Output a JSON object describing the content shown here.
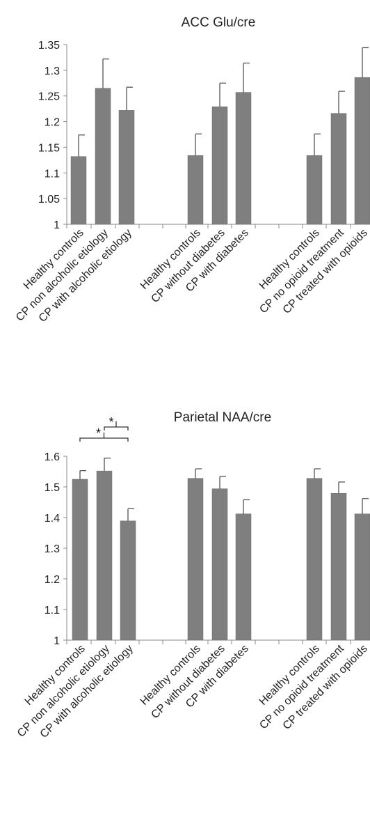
{
  "chart_data": [
    {
      "type": "bar",
      "title": "ACC Glu/cre",
      "ylim": [
        1,
        1.35
      ],
      "yticks": [
        "1",
        "1.05",
        "1.1",
        "1.15",
        "1.2",
        "1.25",
        "1.3",
        "1.35"
      ],
      "grid": false,
      "error_bars": true,
      "bar_color": "#7f7f7f",
      "categories": [
        "Healthy controls",
        "CP non alcoholic etiology",
        "CP with alcoholic etiology",
        "Healthy controls",
        "CP without diabetes",
        "CP with diabetes",
        "Healthy controls",
        "CP no opioid treatment",
        "CP treated with opioids"
      ],
      "values": [
        1.132,
        1.265,
        1.222,
        1.134,
        1.229,
        1.257,
        1.134,
        1.216,
        1.286
      ],
      "errors": [
        0.042,
        0.057,
        0.045,
        0.042,
        0.046,
        0.057,
        0.042,
        0.043,
        0.058
      ]
    },
    {
      "type": "bar",
      "title": "Parietal NAA/cre",
      "ylim": [
        1,
        1.6
      ],
      "yticks": [
        "1",
        "1.1",
        "1.2",
        "1.3",
        "1.4",
        "1.5",
        "1.6"
      ],
      "grid": false,
      "error_bars": true,
      "bar_color": "#7f7f7f",
      "categories": [
        "Healthy controls",
        "CP non alcoholic etiology",
        "CP with alcoholic etiology",
        "Healthy controls",
        "CP without diabetes",
        "CP with diabetes",
        "Healthy controls",
        "CP no opioid treatment",
        "CP treated with opioids"
      ],
      "values": [
        1.525,
        1.552,
        1.389,
        1.528,
        1.494,
        1.412,
        1.528,
        1.479,
        1.412
      ],
      "errors": [
        0.028,
        0.042,
        0.04,
        0.031,
        0.04,
        0.046,
        0.031,
        0.037,
        0.05
      ],
      "annotations": [
        {
          "text": "*",
          "from": 0,
          "to": 2
        },
        {
          "text": "*",
          "from": 1,
          "to": 2
        }
      ]
    }
  ]
}
